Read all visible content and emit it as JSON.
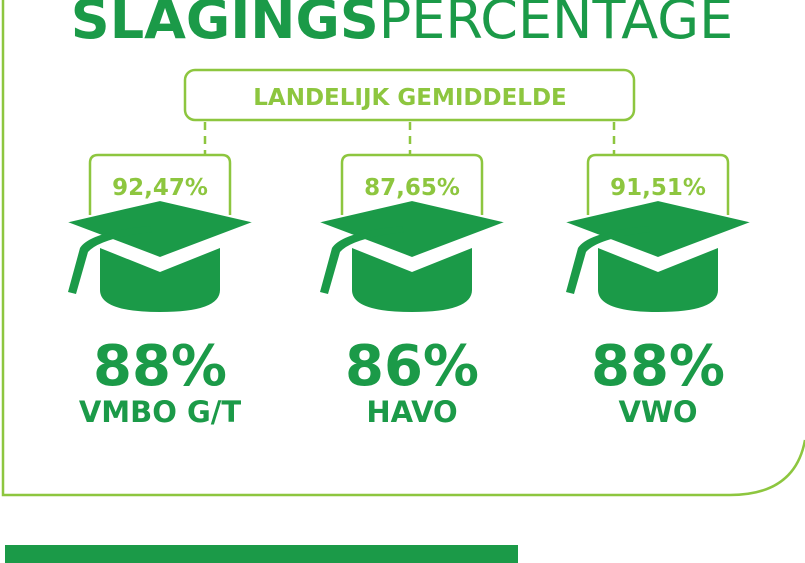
{
  "title": {
    "bold": "SLAGINGS",
    "light": "PERCENTAGE"
  },
  "average_label": "LANDELIJK GEMIDDELDE",
  "items": [
    {
      "average": "92,47%",
      "percentage": "88%",
      "label": "VMBO G/T"
    },
    {
      "average": "87,65%",
      "percentage": "86%",
      "label": "HAVO"
    },
    {
      "average": "91,51%",
      "percentage": "88%",
      "label": "VWO"
    }
  ]
}
